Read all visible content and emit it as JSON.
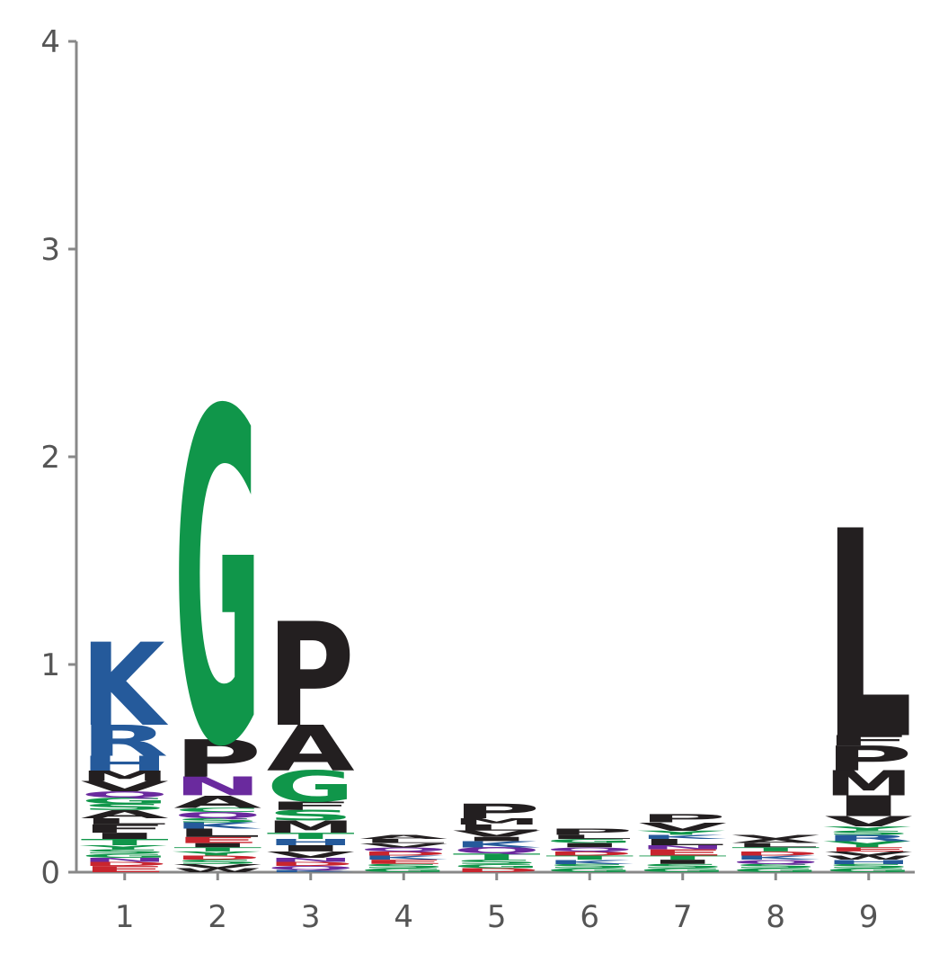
{
  "chart_data": {
    "type": "sequence-logo",
    "title": "",
    "xlabel": "",
    "ylabel": "",
    "ylim": [
      0,
      4
    ],
    "yticks": [
      "0",
      "1",
      "2",
      "3",
      "4"
    ],
    "positions": [
      "1",
      "2",
      "3",
      "4",
      "5",
      "6",
      "7",
      "8",
      "9"
    ],
    "colors": {
      "K": "#255a9b",
      "R": "#255a9b",
      "H": "#255a9b",
      "G": "#10964a",
      "S": "#10964a",
      "T": "#10964a",
      "Y": "#10964a",
      "C": "#10964a",
      "N": "#6a2a9e",
      "Q": "#6a2a9e",
      "D": "#c8252e",
      "E": "#c8252e",
      "A": "#231f20",
      "V": "#231f20",
      "L": "#231f20",
      "I": "#231f20",
      "P": "#231f20",
      "W": "#231f20",
      "F": "#231f20",
      "M": "#231f20"
    },
    "stacks": [
      [
        [
          "E",
          0.03
        ],
        [
          "D",
          0.02
        ],
        [
          "N",
          0.02
        ],
        [
          "G",
          0.02
        ],
        [
          "S",
          0.02
        ],
        [
          "Y",
          0.02
        ],
        [
          "T",
          0.03
        ],
        [
          "I",
          0.03
        ],
        [
          "F",
          0.04
        ],
        [
          "L",
          0.03
        ],
        [
          "A",
          0.04
        ],
        [
          "S",
          0.03
        ],
        [
          "G",
          0.03
        ],
        [
          "Q",
          0.03
        ],
        [
          "V",
          0.05
        ],
        [
          "M",
          0.05
        ],
        [
          "H",
          0.07
        ],
        [
          "R",
          0.15
        ],
        [
          "K",
          0.4
        ]
      ],
      [
        [
          "W",
          0.02
        ],
        [
          "V",
          0.02
        ],
        [
          "S",
          0.02
        ],
        [
          "D",
          0.02
        ],
        [
          "Y",
          0.02
        ],
        [
          "T",
          0.02
        ],
        [
          "I",
          0.02
        ],
        [
          "E",
          0.03
        ],
        [
          "L",
          0.04
        ],
        [
          "K",
          0.03
        ],
        [
          "S",
          0.02
        ],
        [
          "Q",
          0.03
        ],
        [
          "C",
          0.02
        ],
        [
          "A",
          0.06
        ],
        [
          "N",
          0.09
        ],
        [
          "P",
          0.18
        ],
        [
          "G",
          1.6
        ]
      ],
      [
        [
          "K",
          0.01
        ],
        [
          "Q",
          0.02
        ],
        [
          "D",
          0.02
        ],
        [
          "N",
          0.02
        ],
        [
          "V",
          0.03
        ],
        [
          "I",
          0.03
        ],
        [
          "H",
          0.03
        ],
        [
          "T",
          0.03
        ],
        [
          "M",
          0.06
        ],
        [
          "S",
          0.05
        ],
        [
          "F",
          0.04
        ],
        [
          "G",
          0.15
        ],
        [
          "A",
          0.22
        ],
        [
          "P",
          0.5
        ]
      ],
      [
        [
          "G",
          0.02
        ],
        [
          "S",
          0.02
        ],
        [
          "E",
          0.02
        ],
        [
          "K",
          0.02
        ],
        [
          "D",
          0.02
        ],
        [
          "Q",
          0.02
        ],
        [
          "V",
          0.02
        ],
        [
          "L",
          0.02
        ],
        [
          "A",
          0.02
        ]
      ],
      [
        [
          "D",
          0.02
        ],
        [
          "G",
          0.02
        ],
        [
          "S",
          0.02
        ],
        [
          "T",
          0.03
        ],
        [
          "Q",
          0.03
        ],
        [
          "K",
          0.03
        ],
        [
          "I",
          0.02
        ],
        [
          "V",
          0.03
        ],
        [
          "L",
          0.03
        ],
        [
          "M",
          0.03
        ],
        [
          "P",
          0.07
        ]
      ],
      [
        [
          "G",
          0.02
        ],
        [
          "S",
          0.02
        ],
        [
          "K",
          0.02
        ],
        [
          "T",
          0.02
        ],
        [
          "D",
          0.02
        ],
        [
          "Q",
          0.02
        ],
        [
          "I",
          0.02
        ],
        [
          "G",
          0.02
        ],
        [
          "L",
          0.02
        ],
        [
          "P",
          0.03
        ]
      ],
      [
        [
          "G",
          0.02
        ],
        [
          "S",
          0.02
        ],
        [
          "I",
          0.02
        ],
        [
          "T",
          0.02
        ],
        [
          "E",
          0.03
        ],
        [
          "N",
          0.02
        ],
        [
          "L",
          0.03
        ],
        [
          "K",
          0.02
        ],
        [
          "Y",
          0.02
        ],
        [
          "V",
          0.04
        ],
        [
          "P",
          0.04
        ]
      ],
      [
        [
          "G",
          0.02
        ],
        [
          "S",
          0.02
        ],
        [
          "Q",
          0.02
        ],
        [
          "K",
          0.02
        ],
        [
          "D",
          0.02
        ],
        [
          "T",
          0.02
        ],
        [
          "L",
          0.02
        ],
        [
          "A",
          0.02
        ],
        [
          "V",
          0.02
        ]
      ],
      [
        [
          "G",
          0.02
        ],
        [
          "S",
          0.02
        ],
        [
          "H",
          0.02
        ],
        [
          "W",
          0.02
        ],
        [
          "V",
          0.02
        ],
        [
          "E",
          0.02
        ],
        [
          "Y",
          0.03
        ],
        [
          "R",
          0.03
        ],
        [
          "S",
          0.02
        ],
        [
          "Y",
          0.02
        ],
        [
          "V",
          0.05
        ],
        [
          "I",
          0.1
        ],
        [
          "M",
          0.12
        ],
        [
          "P",
          0.12
        ],
        [
          "F",
          0.05
        ],
        [
          "L",
          1.0
        ]
      ]
    ]
  }
}
